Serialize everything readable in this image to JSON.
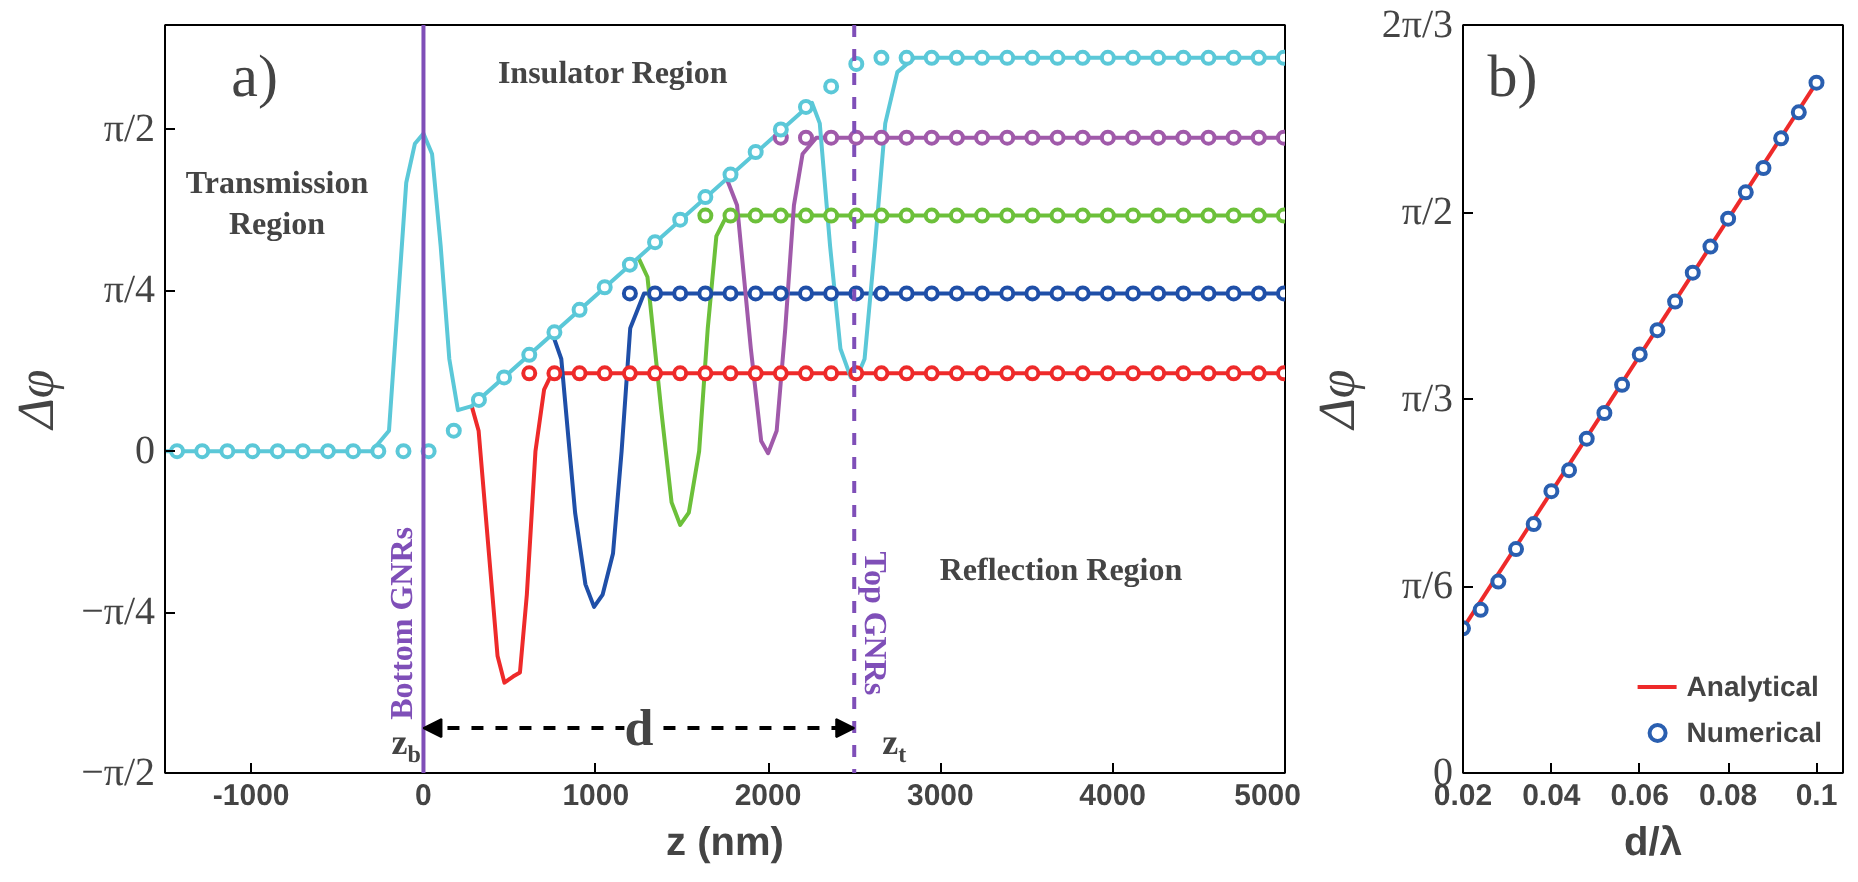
{
  "chart_data": [
    {
      "type": "line",
      "xlabel": "z (nm)",
      "ylabel": "Δφ",
      "xlim": [
        -1500,
        5000
      ],
      "ylim": [
        -1.5708,
        2.08
      ],
      "xticks": [
        -1000,
        0,
        1000,
        2000,
        3000,
        4000,
        5000
      ],
      "yticks": [
        {
          "value": -1.5708,
          "label": "−π/2"
        },
        {
          "value": -0.7854,
          "label": "−π/4"
        },
        {
          "value": 0,
          "label": "0"
        },
        {
          "value": 0.7854,
          "label": "π/4"
        },
        {
          "value": 1.5708,
          "label": "π/2"
        }
      ],
      "line_style": "solid",
      "series": [
        {
          "color": "#ee2a2a",
          "x": [
            280,
            320,
            380,
            430,
            470,
            520,
            560,
            600,
            650,
            700,
            740,
            800,
            5000
          ],
          "values": [
            0.22,
            0.1,
            -0.5,
            -1.0,
            -1.13,
            -1.1,
            -1.08,
            -0.7,
            0.0,
            0.3,
            0.37,
            0.38,
            0.38
          ]
        },
        {
          "color": "#1f4fa8",
          "x": [
            750,
            800,
            880,
            940,
            990,
            1040,
            1100,
            1150,
            1200,
            1280,
            5000
          ],
          "values": [
            0.57,
            0.45,
            -0.3,
            -0.65,
            -0.76,
            -0.7,
            -0.5,
            0.0,
            0.6,
            0.77,
            0.77
          ]
        },
        {
          "color": "#6cc03a",
          "x": [
            1250,
            1300,
            1380,
            1440,
            1490,
            1540,
            1600,
            1650,
            1700,
            1760,
            5000
          ],
          "values": [
            0.94,
            0.85,
            0.2,
            -0.25,
            -0.36,
            -0.3,
            0.0,
            0.6,
            1.05,
            1.15,
            1.15
          ]
        },
        {
          "color": "#a05aaa",
          "x": [
            1760,
            1820,
            1900,
            1960,
            2000,
            2050,
            2100,
            2150,
            2200,
            2280,
            5000
          ],
          "values": [
            1.33,
            1.2,
            0.5,
            0.05,
            -0.01,
            0.1,
            0.6,
            1.2,
            1.45,
            1.53,
            1.53
          ]
        },
        {
          "color": "#5bc8d8",
          "x": [
            -1500,
            -300,
            -200,
            -100,
            -50,
            0,
            50,
            100,
            150,
            200,
            280,
            2255,
            2300,
            2360,
            2420,
            2480,
            2510,
            2560,
            2620,
            2680,
            2750,
            2850,
            5000
          ],
          "values": [
            0,
            0,
            0.1,
            1.31,
            1.5,
            1.55,
            1.45,
            1.0,
            0.45,
            0.2,
            0.22,
            1.7,
            1.6,
            1.0,
            0.5,
            0.36,
            0.35,
            0.45,
            1.0,
            1.6,
            1.85,
            1.92,
            1.92
          ]
        },
        {
          "type": "scatter",
          "marker": "circle",
          "color": "#ee2a2a",
          "x": [
            614,
            760,
            906,
            1052,
            1198,
            1344,
            1490,
            1636,
            1782,
            1928,
            2074,
            2220,
            2366,
            2512,
            2658,
            2804,
            2950,
            3096,
            3242,
            3388,
            3534,
            3680,
            3826,
            3972,
            4118,
            4264,
            4410,
            4556,
            4702,
            4848,
            4994
          ],
          "values": [
            0.38,
            0.38,
            0.38,
            0.38,
            0.38,
            0.38,
            0.38,
            0.38,
            0.38,
            0.38,
            0.38,
            0.38,
            0.38,
            0.38,
            0.38,
            0.38,
            0.38,
            0.38,
            0.38,
            0.38,
            0.38,
            0.38,
            0.38,
            0.38,
            0.38,
            0.38,
            0.38,
            0.38,
            0.38,
            0.38,
            0.38
          ]
        },
        {
          "type": "scatter",
          "marker": "circle",
          "color": "#1f4fa8",
          "x": [
            1198,
            1344,
            1490,
            1636,
            1782,
            1928,
            2074,
            2220,
            2366,
            2512,
            2658,
            2804,
            2950,
            3096,
            3242,
            3388,
            3534,
            3680,
            3826,
            3972,
            4118,
            4264,
            4410,
            4556,
            4702,
            4848,
            4994
          ],
          "values": [
            0.77,
            0.77,
            0.77,
            0.77,
            0.77,
            0.77,
            0.77,
            0.77,
            0.77,
            0.77,
            0.77,
            0.77,
            0.77,
            0.77,
            0.77,
            0.77,
            0.77,
            0.77,
            0.77,
            0.77,
            0.77,
            0.77,
            0.77,
            0.77,
            0.77,
            0.77,
            0.77
          ]
        },
        {
          "type": "scatter",
          "marker": "circle",
          "color": "#6cc03a",
          "x": [
            1636,
            1782,
            1928,
            2074,
            2220,
            2366,
            2512,
            2658,
            2804,
            2950,
            3096,
            3242,
            3388,
            3534,
            3680,
            3826,
            3972,
            4118,
            4264,
            4410,
            4556,
            4702,
            4848,
            4994
          ],
          "values": [
            1.15,
            1.15,
            1.15,
            1.15,
            1.15,
            1.15,
            1.15,
            1.15,
            1.15,
            1.15,
            1.15,
            1.15,
            1.15,
            1.15,
            1.15,
            1.15,
            1.15,
            1.15,
            1.15,
            1.15,
            1.15,
            1.15,
            1.15,
            1.15
          ]
        },
        {
          "type": "scatter",
          "marker": "circle",
          "color": "#a05aaa",
          "x": [
            2074,
            2220,
            2366,
            2512,
            2658,
            2804,
            2950,
            3096,
            3242,
            3388,
            3534,
            3680,
            3826,
            3972,
            4118,
            4264,
            4410,
            4556,
            4702,
            4848,
            4994
          ],
          "values": [
            1.53,
            1.53,
            1.53,
            1.53,
            1.53,
            1.53,
            1.53,
            1.53,
            1.53,
            1.53,
            1.53,
            1.53,
            1.53,
            1.53,
            1.53,
            1.53,
            1.53,
            1.53,
            1.53,
            1.53,
            1.53
          ]
        },
        {
          "type": "scatter",
          "marker": "circle",
          "color": "#5bc8d8",
          "x": [
            -1430,
            -1284,
            -1138,
            -992,
            -846,
            -700,
            -554,
            -408,
            -262,
            -116,
            30,
            176,
            322,
            468,
            614,
            760,
            906,
            1052,
            1198,
            1344,
            1490,
            1636,
            1782,
            1928,
            2074,
            2220,
            2366,
            2512,
            2658,
            2804,
            2950,
            3096,
            3242,
            3388,
            3534,
            3680,
            3826,
            3972,
            4118,
            4264,
            4410,
            4556,
            4702,
            4848,
            4994
          ],
          "values": [
            0,
            0,
            0,
            0,
            0,
            0,
            0,
            0,
            0,
            0,
            0,
            0.1,
            0.25,
            0.36,
            0.47,
            0.58,
            0.69,
            0.8,
            0.91,
            1.02,
            1.13,
            1.24,
            1.35,
            1.46,
            1.57,
            1.68,
            1.78,
            1.89,
            1.92,
            1.92,
            1.92,
            1.92,
            1.92,
            1.92,
            1.92,
            1.92,
            1.92,
            1.92,
            1.92,
            1.92,
            1.92,
            1.92,
            1.92,
            1.92,
            1.92
          ]
        }
      ],
      "ref_lines": [
        {
          "axis": "x",
          "value": 0,
          "label": "Bottom GNRs",
          "color": "#7f4fb8",
          "line_style": "solid"
        },
        {
          "axis": "x",
          "value": 2500,
          "label": "Top GNRs",
          "color": "#7f4fb8",
          "line_style": "dashed"
        }
      ],
      "annotations": [
        "a)",
        "Transmission Region",
        "Insulator Region",
        "Reflection Region",
        {
          "text": "z$_{b}$",
          "x": 0,
          "y": -1.42
        },
        {
          "text": "z$_{t}$",
          "x": 2500,
          "y": -1.42
        },
        "d"
      ]
    },
    {
      "type": "line",
      "xlabel": "d/λ",
      "ylabel": "Δφ",
      "xlim": [
        0.02,
        0.106
      ],
      "ylim": [
        0,
        2.0944
      ],
      "xticks": [
        0.02,
        0.04,
        0.06,
        0.08,
        {
          "value": 0.1,
          "label": "0.1"
        }
      ],
      "yticks": [
        0,
        {
          "value": 0.5236,
          "label": "π/6"
        },
        {
          "value": 1.0472,
          "label": "π/3"
        },
        {
          "value": 1.5708,
          "label": "π/2"
        },
        {
          "value": 2.0944,
          "label": "2π/3"
        }
      ],
      "line_style": "solid",
      "legend": "bottom right",
      "series": [
        {
          "name": "Analytical",
          "color": "#ee2a2a",
          "x": [
            0.02,
            0.1
          ],
          "values": [
            0.405,
            1.933
          ]
        },
        {
          "type": "scatter",
          "marker": "circle",
          "name": "Numerical",
          "color": "#2a5fb0",
          "x": [
            0.02,
            0.024,
            0.028,
            0.032,
            0.036,
            0.04,
            0.044,
            0.048,
            0.052,
            0.056,
            0.06,
            0.064,
            0.068,
            0.072,
            0.076,
            0.08,
            0.084,
            0.088,
            0.092,
            0.096,
            0.1
          ],
          "values": [
            0.405,
            0.457,
            0.536,
            0.627,
            0.697,
            0.789,
            0.848,
            0.936,
            1.008,
            1.087,
            1.172,
            1.24,
            1.32,
            1.401,
            1.474,
            1.552,
            1.626,
            1.694,
            1.777,
            1.85,
            1.933
          ]
        }
      ],
      "annotations": [
        "b)"
      ]
    }
  ]
}
